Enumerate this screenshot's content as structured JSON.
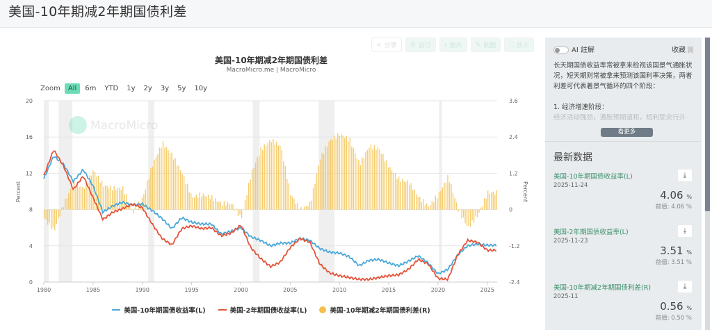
{
  "page": {
    "title": "美国-10年期减2年期国债利差"
  },
  "toolbar": {
    "share": "分享",
    "custom": "自订",
    "image": "图片",
    "draw": "制图",
    "enlarge": "放大"
  },
  "chart": {
    "title": "美国-10年期减2年期国债利差",
    "subtitle": "MacroMicro.me | MacroMicro",
    "watermark": "MacroMicro",
    "range_selector": {
      "label": "Zoom",
      "options": [
        "All",
        "6m",
        "YTD",
        "1y",
        "2y",
        "3y",
        "5y",
        "10y"
      ],
      "active": "All"
    }
  },
  "legend": [
    {
      "label": "美国-10年期国债收益率(L)",
      "color": "#4aa8d8",
      "type": "line"
    },
    {
      "label": "美国-2年期国债收益率(L)",
      "color": "#e5533a",
      "type": "line"
    },
    {
      "label": "美国-10年期减2年期国债利差(R)",
      "color": "#f4c04a",
      "type": "dot"
    }
  ],
  "chart_data": {
    "type": "line",
    "title": "美国-10年期减2年期国债利差",
    "subtitle": "MacroMicro.me | MacroMicro",
    "xlabel": "",
    "ylabel_left": "Percent",
    "ylabel_right": "Percent",
    "xlim": [
      1980,
      2026
    ],
    "ylim_left": [
      0,
      20
    ],
    "ylim_right": [
      -2.4,
      3.6
    ],
    "x_ticks": [
      "1980",
      "1985",
      "1990",
      "1995",
      "2000",
      "2005",
      "2010",
      "2015",
      "2020",
      "2025"
    ],
    "y_ticks_left": [
      "0",
      "4",
      "8",
      "12",
      "16",
      "20"
    ],
    "y_ticks_right": [
      "-2.4",
      "-1.2",
      "0",
      "1.2",
      "2.4",
      "3.6"
    ],
    "grid": true,
    "legend_position": "bottom",
    "recession_shading": [
      [
        1980.0,
        1980.5
      ],
      [
        1981.5,
        1982.9
      ],
      [
        1990.6,
        1991.2
      ],
      [
        2001.2,
        2001.9
      ],
      [
        2007.9,
        2009.5
      ],
      [
        2020.1,
        2020.4
      ]
    ],
    "x": [
      1980,
      1981,
      1982,
      1983,
      1984,
      1985,
      1986,
      1987,
      1988,
      1989,
      1990,
      1991,
      1992,
      1993,
      1994,
      1995,
      1996,
      1997,
      1998,
      1999,
      2000,
      2001,
      2002,
      2003,
      2004,
      2005,
      2006,
      2007,
      2008,
      2009,
      2010,
      2011,
      2012,
      2013,
      2014,
      2015,
      2016,
      2017,
      2018,
      2019,
      2020,
      2021,
      2022,
      2023,
      2024,
      2025
    ],
    "series": [
      {
        "name": "美国-10年期国债收益率(L)",
        "axis": "left",
        "color": "#4aa8d8",
        "values": [
          11.4,
          13.9,
          13.0,
          11.1,
          12.4,
          10.6,
          7.7,
          8.4,
          8.8,
          8.5,
          8.6,
          7.9,
          7.0,
          5.9,
          7.1,
          6.6,
          6.4,
          6.4,
          5.3,
          5.6,
          6.0,
          5.0,
          4.6,
          4.0,
          4.3,
          4.3,
          4.8,
          4.6,
          3.7,
          3.3,
          3.2,
          2.8,
          1.8,
          2.4,
          2.5,
          2.1,
          1.8,
          2.3,
          2.9,
          2.1,
          0.9,
          1.4,
          3.0,
          4.0,
          4.2,
          4.06
        ]
      },
      {
        "name": "美国-2年期国债收益率(L)",
        "axis": "left",
        "color": "#e5533a",
        "values": [
          11.7,
          14.6,
          12.8,
          10.2,
          11.7,
          9.3,
          6.9,
          7.7,
          8.1,
          8.6,
          8.2,
          6.4,
          4.8,
          4.1,
          5.9,
          6.2,
          5.9,
          6.0,
          5.1,
          5.4,
          6.3,
          3.8,
          2.6,
          1.7,
          2.2,
          3.8,
          4.8,
          4.4,
          2.0,
          1.0,
          0.7,
          0.5,
          0.3,
          0.3,
          0.5,
          0.7,
          0.8,
          1.4,
          2.5,
          2.0,
          0.4,
          0.3,
          3.0,
          4.6,
          4.4,
          3.51
        ]
      },
      {
        "name": "美国-10年期减2年期国债利差(R)",
        "axis": "right",
        "color": "#f4c04a",
        "type": "bar",
        "values": [
          -0.3,
          -0.7,
          0.2,
          0.9,
          0.7,
          1.3,
          0.8,
          0.7,
          0.7,
          -0.1,
          0.4,
          1.5,
          2.2,
          1.8,
          1.2,
          0.4,
          0.5,
          0.4,
          0.2,
          0.2,
          -0.3,
          1.2,
          2.0,
          2.3,
          2.1,
          0.5,
          0.0,
          0.2,
          1.7,
          2.3,
          2.5,
          2.3,
          1.5,
          2.1,
          2.0,
          1.4,
          1.0,
          0.9,
          0.4,
          0.1,
          0.5,
          1.1,
          0.0,
          -0.6,
          -0.2,
          0.56
        ]
      }
    ]
  },
  "side_panel": {
    "ai_toggle_label": "AI 註解",
    "bookmark_label": "收藏",
    "ai_paragraph": "长天期国债收益率常被拿来检视该国景气通胀状况，短天期则常被拿来预测该国利率决策，两者利差可代表着景气循环的四个阶段：",
    "ai_stage_1": "1. 经济增速阶段：",
    "ai_stage_1_text": "经济活动强劲，通胀预期温和，短利受央行升",
    "more_label": "看更多",
    "latest_title": "最新数据",
    "stats": [
      {
        "name": "美国-10年期国债收益率(L)",
        "date": "2025-11-24",
        "value": "4.06",
        "unit": "%",
        "prev": "前值: 4.06 %"
      },
      {
        "name": "美国-2年期国债收益率(L)",
        "date": "2025-11-23",
        "value": "3.51",
        "unit": "%",
        "prev": "前值: 3.51 %"
      },
      {
        "name": "美国-10年期减2年期国债利差(R)",
        "date": "2025-11",
        "value": "0.56",
        "unit": "%",
        "prev": "前值: 0.50 %"
      }
    ]
  }
}
